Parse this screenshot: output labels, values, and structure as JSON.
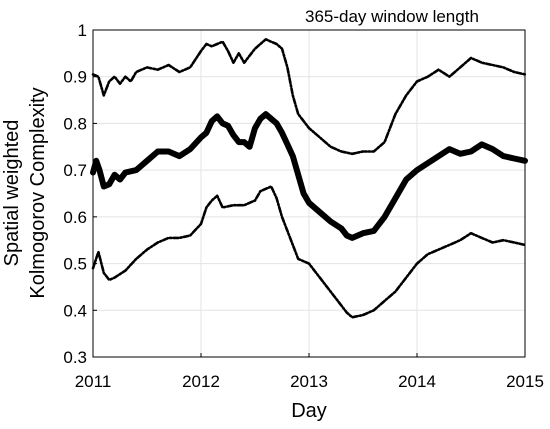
{
  "chart_data": {
    "type": "line",
    "annotation": "365-day window length",
    "xlabel": "Day",
    "ylabel_line1": "Spatial weighted",
    "ylabel_line2": "Kolmogorov Complexity",
    "xlim": [
      2011,
      2015
    ],
    "ylim": [
      0.3,
      1.0
    ],
    "xticks": [
      "2011",
      "2012",
      "2013",
      "2014",
      "2015"
    ],
    "yticks": [
      "0.3",
      "0.4",
      "0.5",
      "0.6",
      "0.7",
      "0.8",
      "0.9",
      "1"
    ],
    "grid": true,
    "series": [
      {
        "style": "dashed-upper",
        "x": [
          2011.0,
          2011.05,
          2011.1,
          2011.15,
          2011.2,
          2011.25,
          2011.3,
          2011.35,
          2011.4,
          2011.5,
          2011.6,
          2011.7,
          2011.8,
          2011.9,
          2012.0,
          2012.05,
          2012.1,
          2012.15,
          2012.2,
          2012.25,
          2012.3,
          2012.35,
          2012.4,
          2012.5,
          2012.6,
          2012.65,
          2012.7,
          2012.75,
          2012.8,
          2012.85,
          2012.9,
          2013.0,
          2013.1,
          2013.2,
          2013.3,
          2013.4,
          2013.5,
          2013.6,
          2013.7,
          2013.8,
          2013.9,
          2014.0,
          2014.1,
          2014.2,
          2014.3,
          2014.4,
          2014.5,
          2014.6,
          2014.7,
          2014.8,
          2014.9,
          2015.0
        ],
        "values": [
          0.905,
          0.9,
          0.86,
          0.89,
          0.9,
          0.885,
          0.9,
          0.89,
          0.91,
          0.92,
          0.915,
          0.925,
          0.91,
          0.92,
          0.955,
          0.97,
          0.965,
          0.97,
          0.975,
          0.955,
          0.93,
          0.95,
          0.93,
          0.96,
          0.98,
          0.975,
          0.97,
          0.96,
          0.92,
          0.86,
          0.82,
          0.79,
          0.77,
          0.75,
          0.74,
          0.735,
          0.74,
          0.74,
          0.76,
          0.82,
          0.86,
          0.89,
          0.9,
          0.915,
          0.9,
          0.92,
          0.94,
          0.93,
          0.925,
          0.92,
          0.91,
          0.905
        ]
      },
      {
        "style": "solid-middle",
        "x": [
          2011.0,
          2011.03,
          2011.06,
          2011.1,
          2011.15,
          2011.2,
          2011.25,
          2011.3,
          2011.4,
          2011.5,
          2011.6,
          2011.7,
          2011.8,
          2011.9,
          2012.0,
          2012.05,
          2012.1,
          2012.15,
          2012.2,
          2012.25,
          2012.3,
          2012.35,
          2012.4,
          2012.45,
          2012.5,
          2012.55,
          2012.6,
          2012.65,
          2012.7,
          2012.75,
          2012.8,
          2012.85,
          2012.9,
          2012.95,
          2013.0,
          2013.1,
          2013.2,
          2013.3,
          2013.35,
          2013.4,
          2013.5,
          2013.6,
          2013.7,
          2013.8,
          2013.9,
          2014.0,
          2014.1,
          2014.2,
          2014.3,
          2014.4,
          2014.5,
          2014.6,
          2014.7,
          2014.8,
          2014.9,
          2015.0
        ],
        "values": [
          0.695,
          0.72,
          0.7,
          0.665,
          0.67,
          0.69,
          0.68,
          0.695,
          0.7,
          0.72,
          0.74,
          0.74,
          0.73,
          0.745,
          0.77,
          0.78,
          0.805,
          0.815,
          0.8,
          0.795,
          0.775,
          0.76,
          0.76,
          0.75,
          0.79,
          0.81,
          0.82,
          0.81,
          0.8,
          0.78,
          0.755,
          0.73,
          0.69,
          0.65,
          0.63,
          0.61,
          0.59,
          0.575,
          0.56,
          0.555,
          0.565,
          0.57,
          0.6,
          0.64,
          0.68,
          0.7,
          0.715,
          0.73,
          0.745,
          0.735,
          0.74,
          0.755,
          0.745,
          0.73,
          0.725,
          0.72
        ]
      },
      {
        "style": "dashed-lower",
        "x": [
          2011.0,
          2011.05,
          2011.1,
          2011.15,
          2011.2,
          2011.3,
          2011.4,
          2011.5,
          2011.6,
          2011.7,
          2011.8,
          2011.9,
          2012.0,
          2012.05,
          2012.1,
          2012.15,
          2012.2,
          2012.3,
          2012.4,
          2012.5,
          2012.55,
          2012.6,
          2012.65,
          2012.7,
          2012.75,
          2012.8,
          2012.85,
          2012.9,
          2013.0,
          2013.1,
          2013.2,
          2013.3,
          2013.35,
          2013.4,
          2013.5,
          2013.6,
          2013.7,
          2013.8,
          2013.9,
          2014.0,
          2014.1,
          2014.2,
          2014.3,
          2014.4,
          2014.5,
          2014.6,
          2014.7,
          2014.8,
          2014.9,
          2015.0
        ],
        "values": [
          0.49,
          0.525,
          0.48,
          0.465,
          0.47,
          0.485,
          0.51,
          0.53,
          0.545,
          0.555,
          0.555,
          0.56,
          0.585,
          0.62,
          0.635,
          0.645,
          0.62,
          0.625,
          0.625,
          0.635,
          0.655,
          0.66,
          0.665,
          0.64,
          0.6,
          0.57,
          0.54,
          0.51,
          0.5,
          0.47,
          0.44,
          0.41,
          0.395,
          0.385,
          0.39,
          0.4,
          0.42,
          0.44,
          0.47,
          0.5,
          0.52,
          0.53,
          0.54,
          0.55,
          0.565,
          0.555,
          0.545,
          0.55,
          0.545,
          0.54
        ]
      }
    ]
  }
}
